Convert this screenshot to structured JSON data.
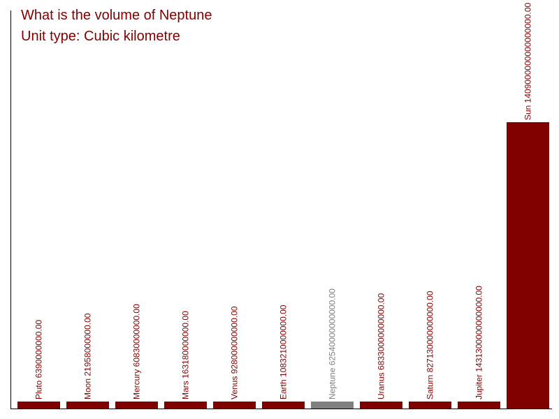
{
  "chart_data": {
    "type": "bar",
    "title": "What is the volume of Neptune",
    "subtitle": "Unit type: Cubic kilometre",
    "categories": [
      "Pluto",
      "Moon",
      "Mercury",
      "Mars",
      "Venus",
      "Earth",
      "Neptune",
      "Uranus",
      "Saturn",
      "Jupiter",
      "Sun"
    ],
    "values": [
      6390000000,
      21958000000,
      60830000000,
      163180000000,
      928000000000,
      1083210000000,
      62540000000000,
      68330000000000,
      827130000000000,
      1431300000000000,
      1409000000000000000
    ],
    "value_labels": [
      "6390000000.00",
      "21958000000.00",
      "60830000000.00",
      "163180000000.00",
      "928000000000.00",
      "1083210000000.00",
      "62540000000000.00",
      "68330000000000.00",
      "827130000000000.00",
      "1431300000000000.00",
      "1409000000000000000.00"
    ],
    "highlight": "Neptune",
    "colors": {
      "bar": "#800000",
      "highlight_bar": "#808080",
      "title": "#800000",
      "axis": "#000000"
    },
    "grid": false,
    "legend": "none"
  }
}
